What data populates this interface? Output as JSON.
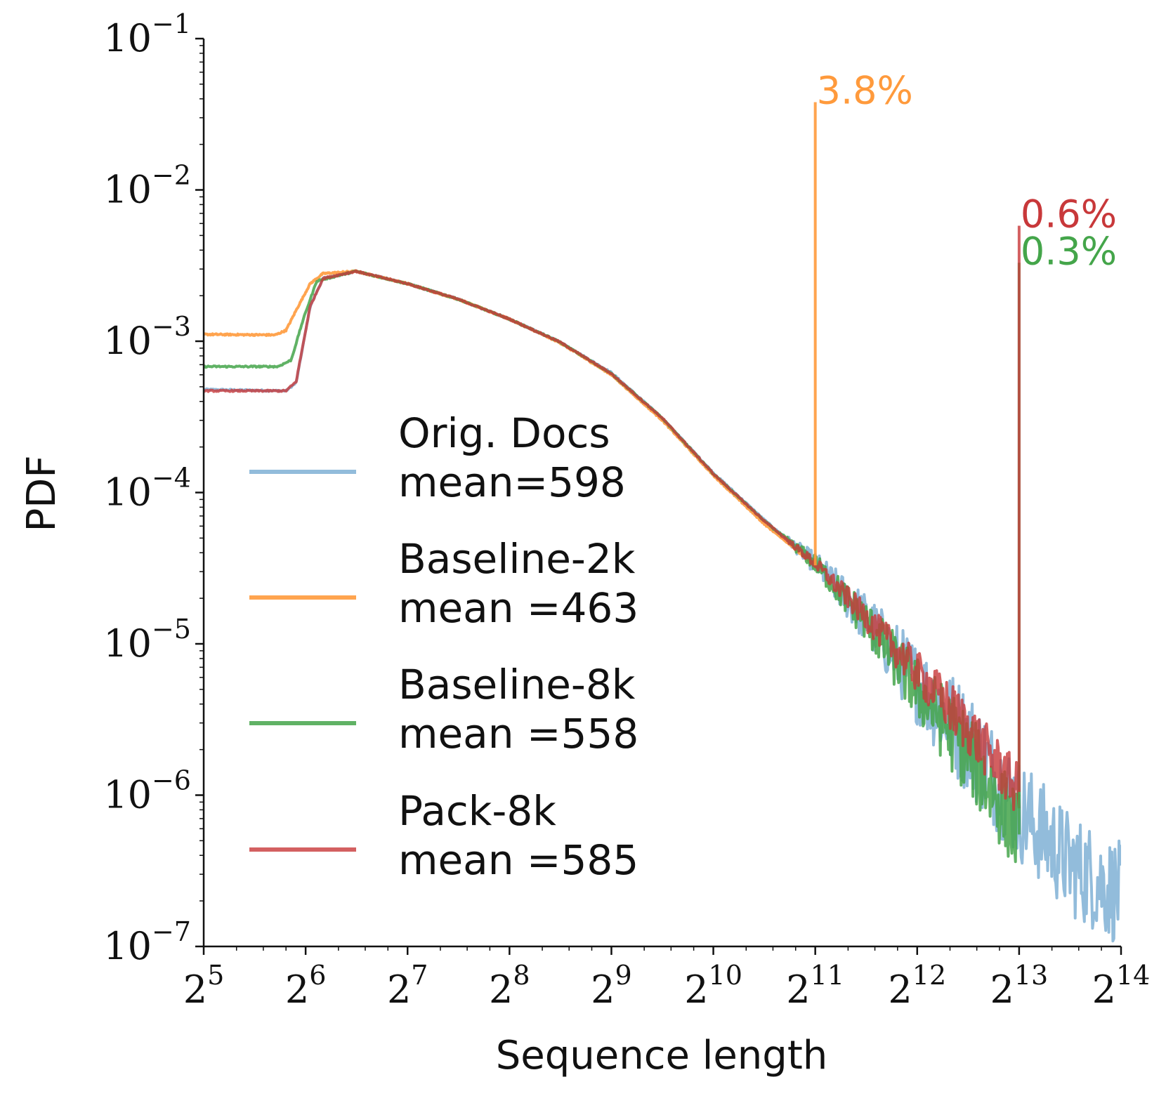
{
  "chart_data": {
    "type": "line",
    "title": "",
    "xlabel": "Sequence length",
    "ylabel": "PDF",
    "xscale": "log2",
    "yscale": "log10",
    "xlim": [
      32,
      16384
    ],
    "ylim": [
      1e-07,
      0.1
    ],
    "x_ticks": [
      {
        "value": 32,
        "base": "2",
        "exp": "5"
      },
      {
        "value": 64,
        "base": "2",
        "exp": "6"
      },
      {
        "value": 128,
        "base": "2",
        "exp": "7"
      },
      {
        "value": 256,
        "base": "2",
        "exp": "8"
      },
      {
        "value": 512,
        "base": "2",
        "exp": "9"
      },
      {
        "value": 1024,
        "base": "2",
        "exp": "10"
      },
      {
        "value": 2048,
        "base": "2",
        "exp": "11"
      },
      {
        "value": 4096,
        "base": "2",
        "exp": "12"
      },
      {
        "value": 8192,
        "base": "2",
        "exp": "13"
      },
      {
        "value": 16384,
        "base": "2",
        "exp": "14"
      }
    ],
    "y_ticks": [
      {
        "value": 1e-07,
        "base": "10",
        "exp": "−7"
      },
      {
        "value": 1e-06,
        "base": "10",
        "exp": "−6"
      },
      {
        "value": 1e-05,
        "base": "10",
        "exp": "−5"
      },
      {
        "value": 0.0001,
        "base": "10",
        "exp": "−4"
      },
      {
        "value": 0.001,
        "base": "10",
        "exp": "−3"
      },
      {
        "value": 0.01,
        "base": "10",
        "exp": "−2"
      },
      {
        "value": 0.1,
        "base": "10",
        "exp": "−1"
      }
    ],
    "grid": false,
    "legend_position": "lower-left",
    "series": [
      {
        "name": "Orig. Docs",
        "legend_line2": "mean=598",
        "color": "#7fb0d5",
        "opacity": 0.85,
        "points": [
          [
            32,
            0.00048
          ],
          [
            56,
            0.00047
          ],
          [
            60,
            0.00053
          ],
          [
            66,
            0.0017
          ],
          [
            72,
            0.0026
          ],
          [
            90,
            0.0029
          ],
          [
            128,
            0.0024
          ],
          [
            180,
            0.0019
          ],
          [
            256,
            0.0014
          ],
          [
            360,
            0.00099
          ],
          [
            512,
            0.00062
          ],
          [
            724,
            0.00031
          ],
          [
            1024,
            0.000135
          ],
          [
            1448,
            6.6e-05
          ],
          [
            2048,
            3.4e-05
          ],
          [
            2896,
            1.45e-05
          ],
          [
            4096,
            5.5e-06
          ],
          [
            5792,
            2.3e-06
          ],
          [
            8192,
            8e-07
          ],
          [
            9000,
            6.5e-07
          ],
          [
            11585,
            3.5e-07
          ],
          [
            16384,
            2.2e-07
          ]
        ],
        "noise": 0.35
      },
      {
        "name": "Baseline-2k",
        "legend_line2": "mean =463",
        "color": "#ff9a3c",
        "opacity": 0.9,
        "points": [
          [
            32,
            0.00111
          ],
          [
            52,
            0.0011
          ],
          [
            56,
            0.00118
          ],
          [
            60,
            0.0016
          ],
          [
            66,
            0.0024
          ],
          [
            72,
            0.0028
          ],
          [
            90,
            0.0029
          ],
          [
            128,
            0.0024
          ],
          [
            180,
            0.0019
          ],
          [
            256,
            0.0014
          ],
          [
            360,
            0.00098
          ],
          [
            512,
            0.0006
          ],
          [
            724,
            0.0003
          ],
          [
            1024,
            0.00013
          ],
          [
            1448,
            6.2e-05
          ],
          [
            2048,
            3.3e-05
          ]
        ],
        "spike": {
          "x": 2048,
          "y": 0.038
        },
        "spike_label": "3.8%",
        "noise": 0.05
      },
      {
        "name": "Baseline-8k",
        "legend_line2": "mean =558",
        "color": "#44a54a",
        "opacity": 0.85,
        "points": [
          [
            32,
            0.00068
          ],
          [
            53,
            0.00068
          ],
          [
            58,
            0.00075
          ],
          [
            63,
            0.0014
          ],
          [
            69,
            0.0025
          ],
          [
            90,
            0.0029
          ],
          [
            128,
            0.0024
          ],
          [
            180,
            0.0019
          ],
          [
            256,
            0.0014
          ],
          [
            360,
            0.00099
          ],
          [
            512,
            0.00061
          ],
          [
            724,
            0.00031
          ],
          [
            1024,
            0.000133
          ],
          [
            1448,
            6.5e-05
          ],
          [
            2048,
            3.4e-05
          ],
          [
            2896,
            1.4e-05
          ],
          [
            4096,
            5e-06
          ],
          [
            5792,
            1.9e-06
          ],
          [
            8192,
            5.5e-07
          ]
        ],
        "spike": {
          "x": 8192,
          "y": 0.0033
        },
        "spike_label": "0.3%",
        "noise": 0.28
      },
      {
        "name": "Pack-8k",
        "legend_line2": "mean =585",
        "color": "#c8383a",
        "opacity": 0.8,
        "points": [
          [
            32,
            0.00047
          ],
          [
            56,
            0.00047
          ],
          [
            60,
            0.00054
          ],
          [
            66,
            0.0017
          ],
          [
            72,
            0.0026
          ],
          [
            90,
            0.0029
          ],
          [
            128,
            0.0024
          ],
          [
            180,
            0.0019
          ],
          [
            256,
            0.0014
          ],
          [
            360,
            0.00099
          ],
          [
            512,
            0.00061
          ],
          [
            724,
            0.00031
          ],
          [
            1024,
            0.000133
          ],
          [
            1448,
            6.5e-05
          ],
          [
            2048,
            3.4e-05
          ],
          [
            2896,
            1.5e-05
          ],
          [
            4096,
            6.5e-06
          ],
          [
            5792,
            2.8e-06
          ],
          [
            8192,
            1.05e-06
          ]
        ],
        "spike": {
          "x": 8192,
          "y": 0.0058
        },
        "spike_label": "0.6%",
        "noise": 0.18
      }
    ]
  }
}
